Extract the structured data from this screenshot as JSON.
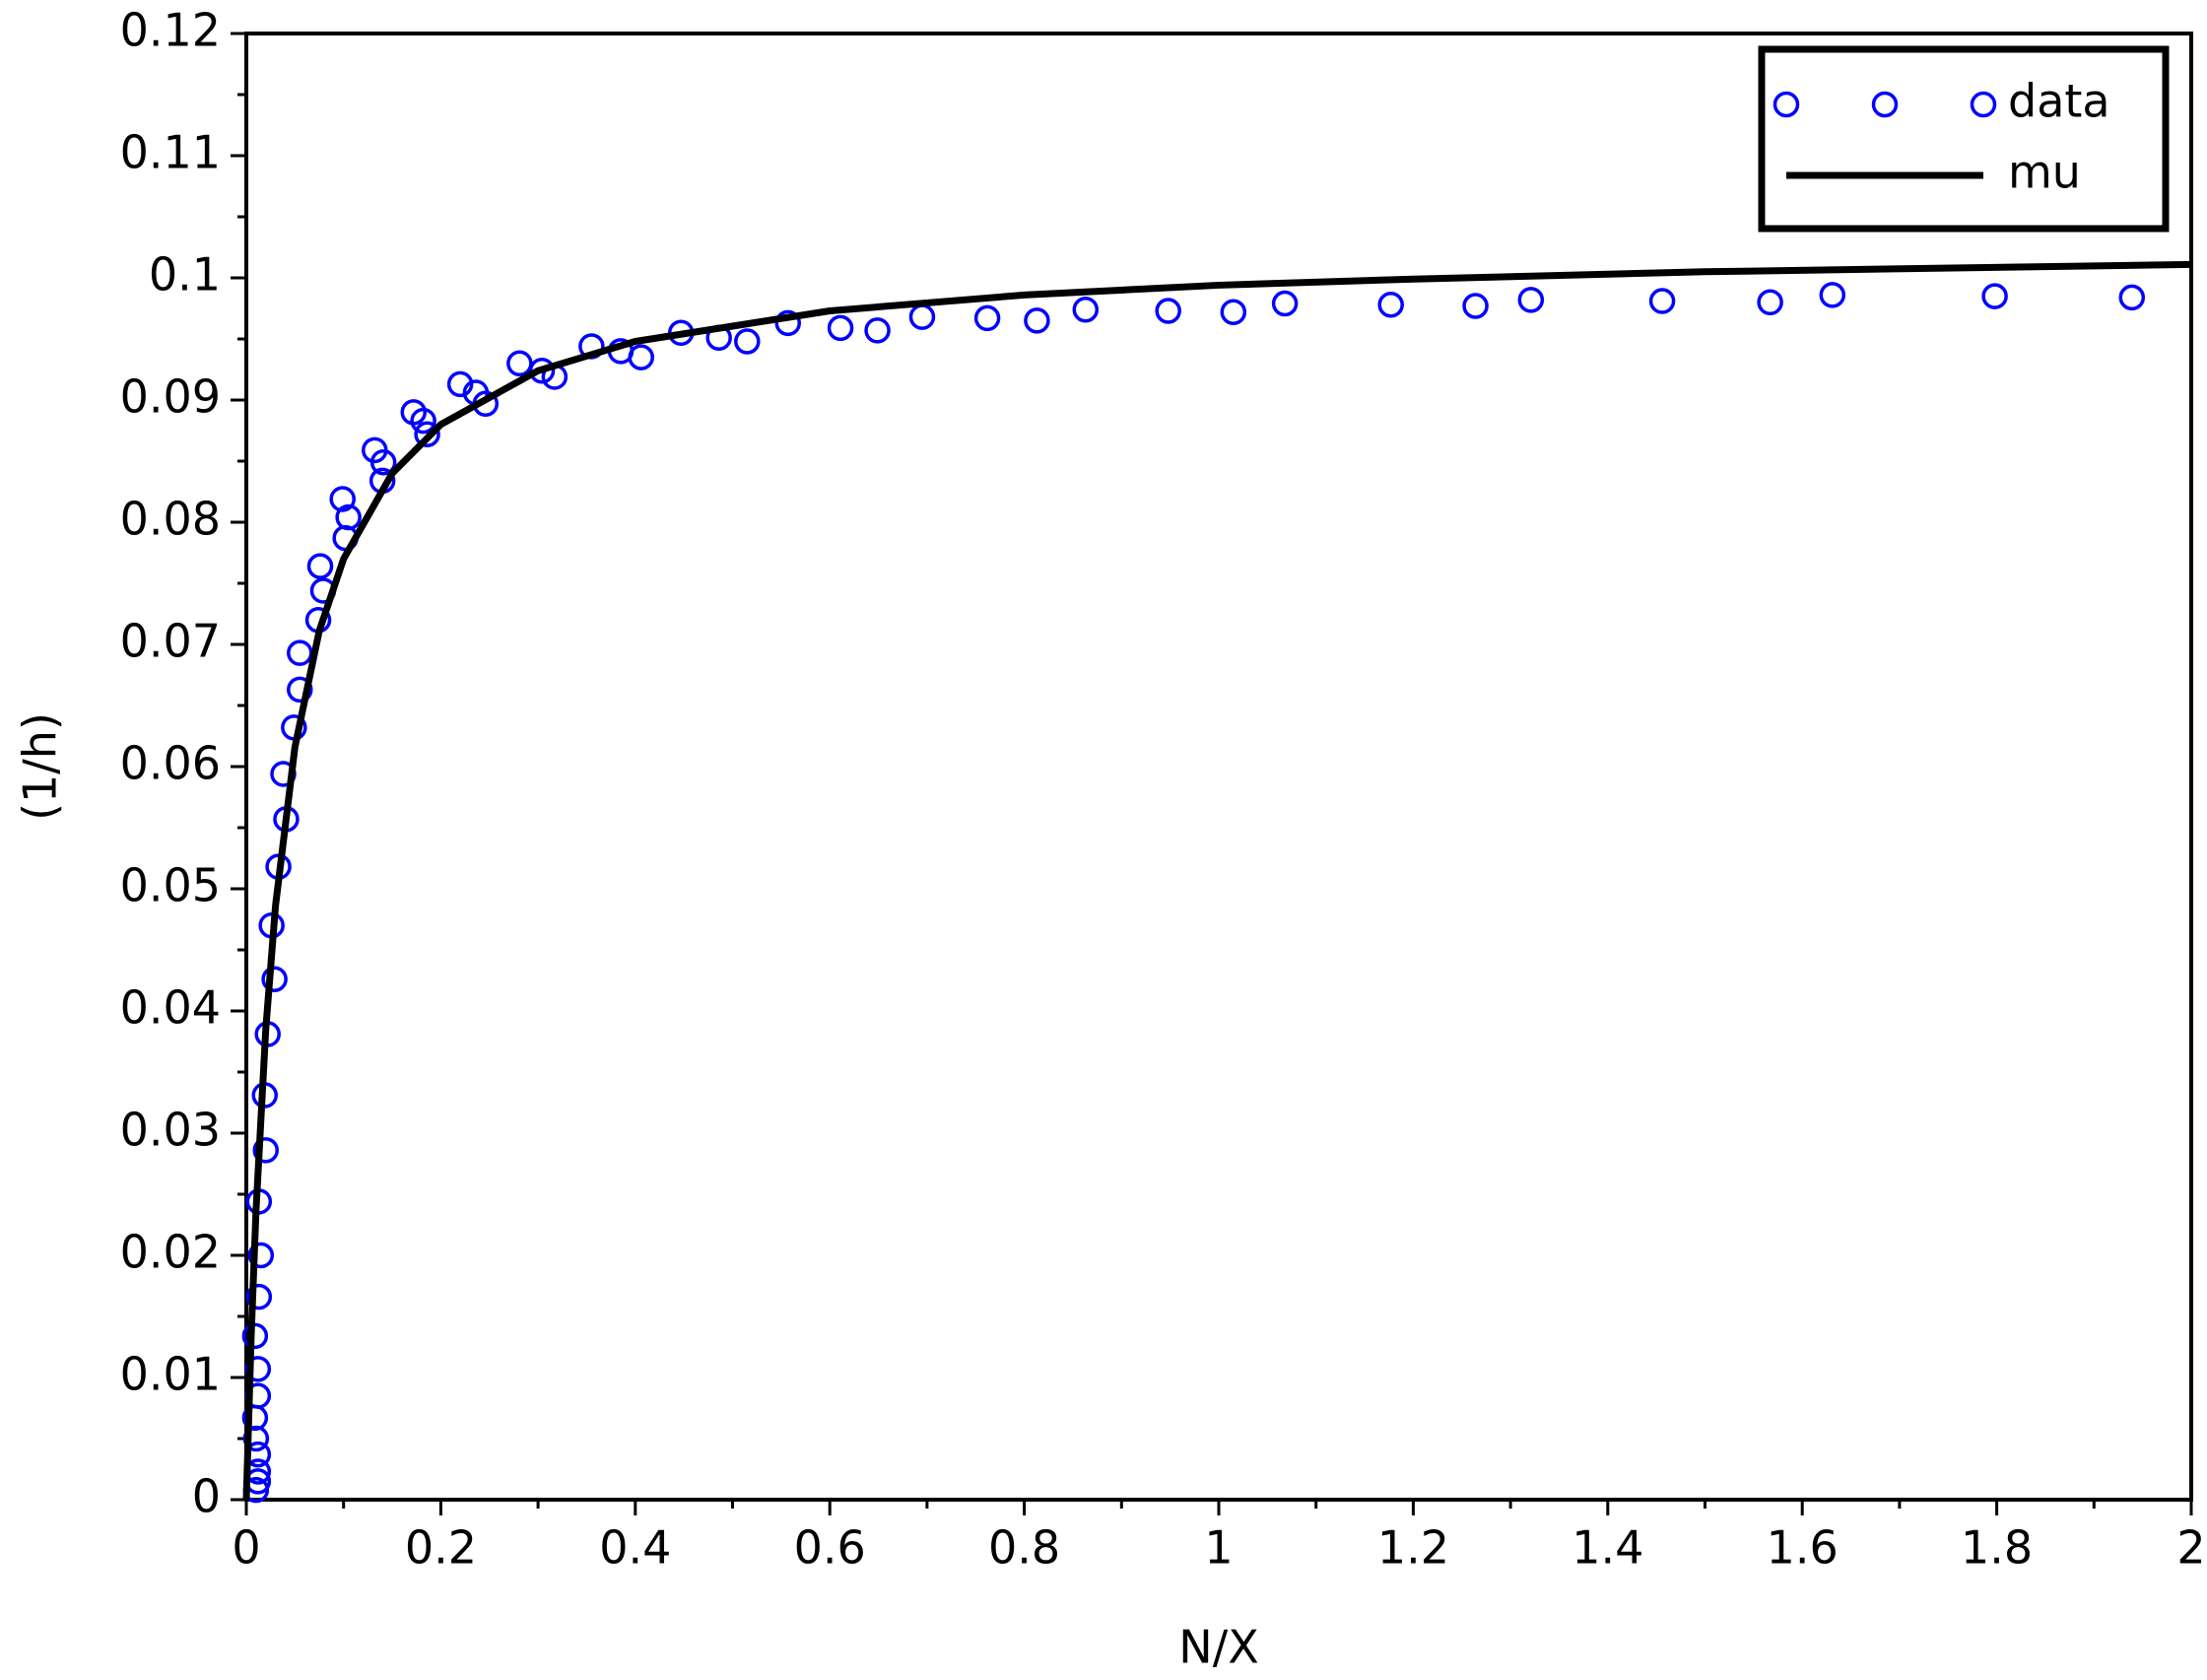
{
  "chart_data": {
    "type": "scatter",
    "x_label": "N/X",
    "y_label": "(1/h)",
    "xlim": [
      0,
      2
    ],
    "xticks": [
      0,
      0.2,
      0.4,
      0.6,
      0.8,
      1,
      1.2,
      1.4,
      1.6,
      1.8,
      2
    ],
    "ylim": [
      0,
      0.12
    ],
    "yticks": [
      0,
      0.01,
      0.02,
      0.03,
      0.04,
      0.05,
      0.06,
      0.07,
      0.08,
      0.09,
      0.1,
      0.11,
      0.12
    ],
    "legend": "upper right",
    "series": [
      {
        "name": "data",
        "type": "scatter",
        "color": "#0000ff",
        "x": [
          0.01,
          0.012,
          0.012,
          0.012,
          0.01,
          0.009,
          0.012,
          0.012,
          0.009,
          0.013,
          0.015,
          0.013,
          0.02,
          0.019,
          0.022,
          0.029,
          0.026,
          0.033,
          0.041,
          0.038,
          0.049,
          0.055,
          0.055,
          0.074,
          0.079,
          0.076,
          0.102,
          0.105,
          0.099,
          0.14,
          0.141,
          0.132,
          0.186,
          0.182,
          0.172,
          0.246,
          0.236,
          0.22,
          0.317,
          0.304,
          0.281,
          0.406,
          0.385,
          0.355,
          0.515,
          0.486,
          0.447,
          0.649,
          0.611,
          0.557,
          0.813,
          0.762,
          0.695,
          1.015,
          0.948,
          0.863,
          1.264,
          1.177,
          1.068,
          1.567,
          1.456,
          1.321,
          1.939,
          1.798,
          1.631
        ],
        "values": [
          0.0008,
          0.0015,
          0.0023,
          0.0037,
          0.005,
          0.0067,
          0.0085,
          0.0107,
          0.0134,
          0.0166,
          0.02,
          0.0244,
          0.0286,
          0.0331,
          0.0381,
          0.0426,
          0.047,
          0.0518,
          0.0557,
          0.0594,
          0.0632,
          0.0663,
          0.0693,
          0.072,
          0.0744,
          0.0764,
          0.0787,
          0.0804,
          0.0819,
          0.0834,
          0.0849,
          0.0859,
          0.0872,
          0.0883,
          0.089,
          0.0897,
          0.0906,
          0.0913,
          0.0919,
          0.0924,
          0.093,
          0.0935,
          0.094,
          0.0944,
          0.0948,
          0.0951,
          0.0955,
          0.0957,
          0.0959,
          0.0963,
          0.0965,
          0.0967,
          0.0968,
          0.0972,
          0.0973,
          0.0974,
          0.0977,
          0.0978,
          0.0979,
          0.098,
          0.0981,
          0.0982,
          0.0984,
          0.0985,
          0.0986
        ]
      },
      {
        "name": "mu",
        "type": "line",
        "color": "#000000",
        "x": [
          0,
          0.005,
          0.01,
          0.02,
          0.03,
          0.05,
          0.075,
          0.1,
          0.15,
          0.2,
          0.3,
          0.4,
          0.6,
          0.8,
          1,
          1.2,
          1.5,
          2
        ],
        "values": [
          0,
          0.0134,
          0.0237,
          0.0385,
          0.0486,
          0.0616,
          0.0711,
          0.077,
          0.084,
          0.088,
          0.0924,
          0.0948,
          0.0973,
          0.0986,
          0.0994,
          0.0999,
          0.1005,
          0.1011
        ]
      }
    ]
  }
}
